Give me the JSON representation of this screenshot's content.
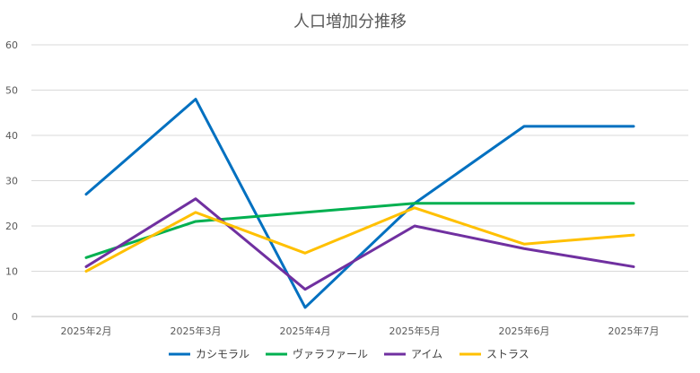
{
  "chart_data": {
    "type": "line",
    "title": "人口増加分推移",
    "xlabel": "",
    "ylabel": "",
    "categories": [
      "2025年2月",
      "2025年3月",
      "2025年4月",
      "2025年5月",
      "2025年6月",
      "2025年7月"
    ],
    "ylim": [
      0,
      60
    ],
    "yticks": [
      0,
      10,
      20,
      30,
      40,
      50,
      60
    ],
    "grid": true,
    "legend_position": "bottom",
    "series": [
      {
        "name": "カシモラル",
        "color": "#0070C0",
        "values": [
          27,
          48,
          2,
          25,
          42,
          42
        ]
      },
      {
        "name": "ヴァラファール",
        "color": "#00B050",
        "values": [
          13,
          21,
          23,
          25,
          25,
          25
        ]
      },
      {
        "name": "アイム",
        "color": "#7030A0",
        "values": [
          11,
          26,
          6,
          20,
          15,
          11
        ]
      },
      {
        "name": "ストラス",
        "color": "#FFC000",
        "values": [
          10,
          23,
          14,
          24,
          16,
          18
        ]
      }
    ]
  }
}
